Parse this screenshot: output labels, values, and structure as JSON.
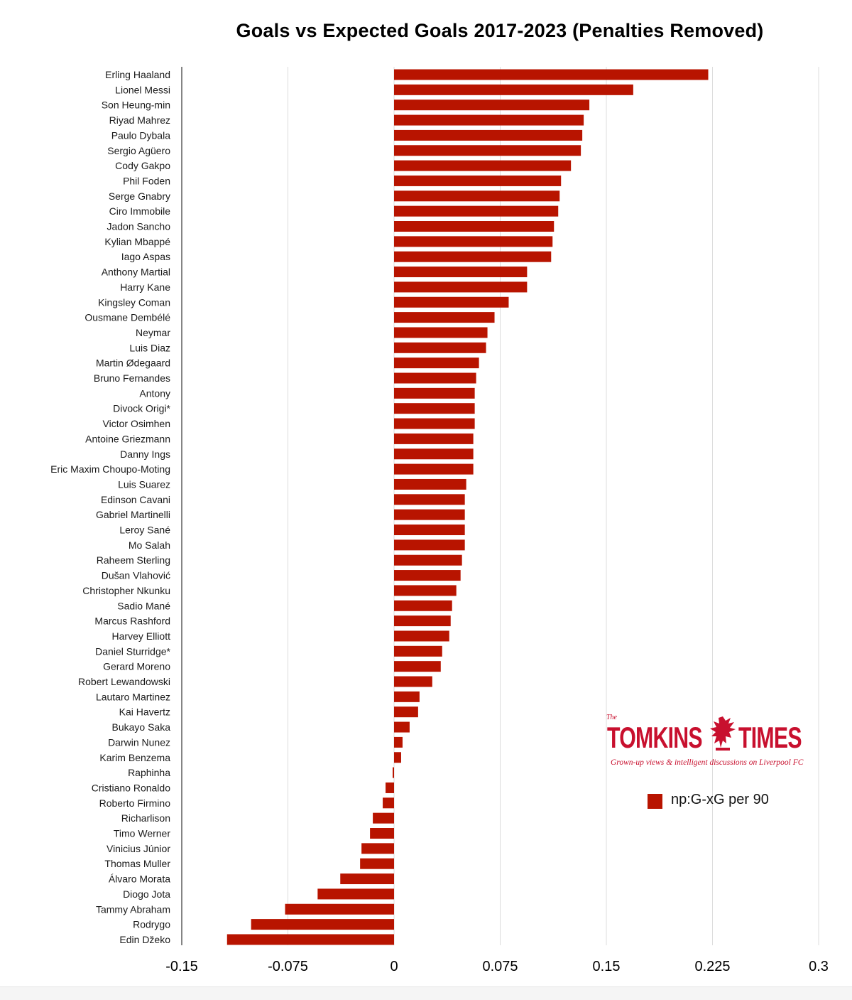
{
  "chart_data": {
    "type": "bar",
    "orientation": "horizontal",
    "title": "Goals vs Expected Goals 2017-2023 (Penalties Removed)",
    "xlabel": "",
    "ylabel": "",
    "xlim": [
      -0.15,
      0.3
    ],
    "xticks": [
      -0.15,
      -0.075,
      0,
      0.075,
      0.15,
      0.225,
      0.3
    ],
    "xtick_labels": [
      "-0.15",
      "-0.075",
      "0",
      "0.075",
      "0.15",
      "0.225",
      "0.3"
    ],
    "grid": "vertical",
    "legend_position": "bottom-right",
    "bar_color": "#b81400",
    "categories": [
      "Erling Haaland",
      "Lionel Messi",
      "Son Heung-min",
      "Riyad Mahrez",
      "Paulo Dybala",
      "Sergio Agüero",
      "Cody Gakpo",
      "Phil Foden",
      "Serge Gnabry",
      "Ciro Immobile",
      "Jadon Sancho",
      "Kylian Mbappé",
      "Iago Aspas",
      "Anthony Martial",
      "Harry Kane",
      "Kingsley Coman",
      "Ousmane Dembélé",
      "Neymar",
      "Luis Diaz",
      "Martin Ødegaard",
      "Bruno Fernandes",
      "Antony",
      "Divock Origi*",
      "Victor Osimhen",
      "Antoine Griezmann",
      "Danny Ings",
      "Eric Maxim Choupo-Moting",
      "Luis Suarez",
      "Edinson Cavani",
      "Gabriel Martinelli",
      "Leroy Sané",
      "Mo Salah",
      "Raheem Sterling",
      "Dušan Vlahović",
      "Christopher Nkunku",
      "Sadio Mané",
      "Marcus Rashford",
      "Harvey Elliott",
      "Daniel Sturridge*",
      "Gerard Moreno",
      "Robert Lewandowski",
      "Lautaro Martinez",
      "Kai Havertz",
      "Bukayo Saka",
      "Darwin Nunez",
      "Karim Benzema",
      "Raphinha",
      "Cristiano Ronaldo",
      "Roberto Firmino",
      "Richarlison",
      "Timo Werner",
      "Vinicius Júnior",
      "Thomas Muller",
      "Álvaro Morata",
      "Diogo Jota",
      "Tammy Abraham",
      "Rodrygo",
      "Edin Džeko"
    ],
    "series": [
      {
        "name": "np:G-xG per 90",
        "values": [
          0.222,
          0.169,
          0.138,
          0.134,
          0.133,
          0.132,
          0.125,
          0.118,
          0.117,
          0.116,
          0.113,
          0.112,
          0.111,
          0.094,
          0.094,
          0.081,
          0.071,
          0.066,
          0.065,
          0.06,
          0.058,
          0.057,
          0.057,
          0.057,
          0.056,
          0.056,
          0.056,
          0.051,
          0.05,
          0.05,
          0.05,
          0.05,
          0.048,
          0.047,
          0.044,
          0.041,
          0.04,
          0.039,
          0.034,
          0.033,
          0.027,
          0.018,
          0.017,
          0.011,
          0.006,
          0.005,
          -0.001,
          -0.006,
          -0.008,
          -0.015,
          -0.017,
          -0.023,
          -0.024,
          -0.038,
          -0.054,
          -0.077,
          -0.101,
          -0.118
        ]
      }
    ]
  },
  "logo": {
    "small_word": "The",
    "word1": "TOMKINS",
    "word2": "TIMES",
    "tagline": "Grown-up views & intelligent discussions on Liverpool FC"
  },
  "legend": {
    "label": "np:G-xG per 90",
    "color": "#b81400"
  }
}
